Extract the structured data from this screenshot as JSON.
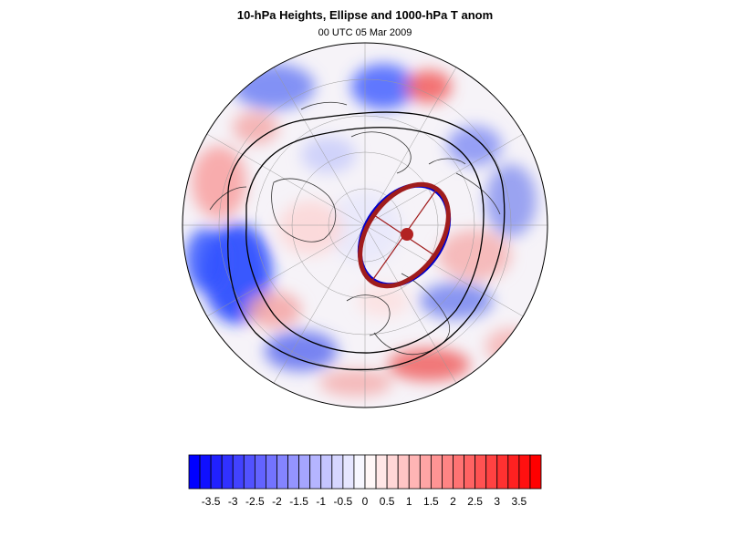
{
  "title": "10-hPa Heights, Ellipse and 1000-hPa T anom",
  "subtitle": "00 UTC 05 Mar 2009",
  "colorbar": {
    "tick_labels": [
      "-3.5",
      "-3",
      "-2.5",
      "-2",
      "-1.5",
      "-1",
      "-0.5",
      "0",
      "0.5",
      "1",
      "1.5",
      "2",
      "2.5",
      "3",
      "3.5"
    ],
    "min": -4,
    "max": 4,
    "step": 0.25,
    "negative_color": "#0000ff",
    "positive_color": "#ff0000",
    "neutral_color": "#ffffff"
  },
  "map": {
    "projection": "polar stereographic (north pole)",
    "ellipse_color": "#a01c1c",
    "blue_contour_color": "#0000cc",
    "center_marker_color": "#b22222",
    "height_contour_color": "#000000"
  }
}
